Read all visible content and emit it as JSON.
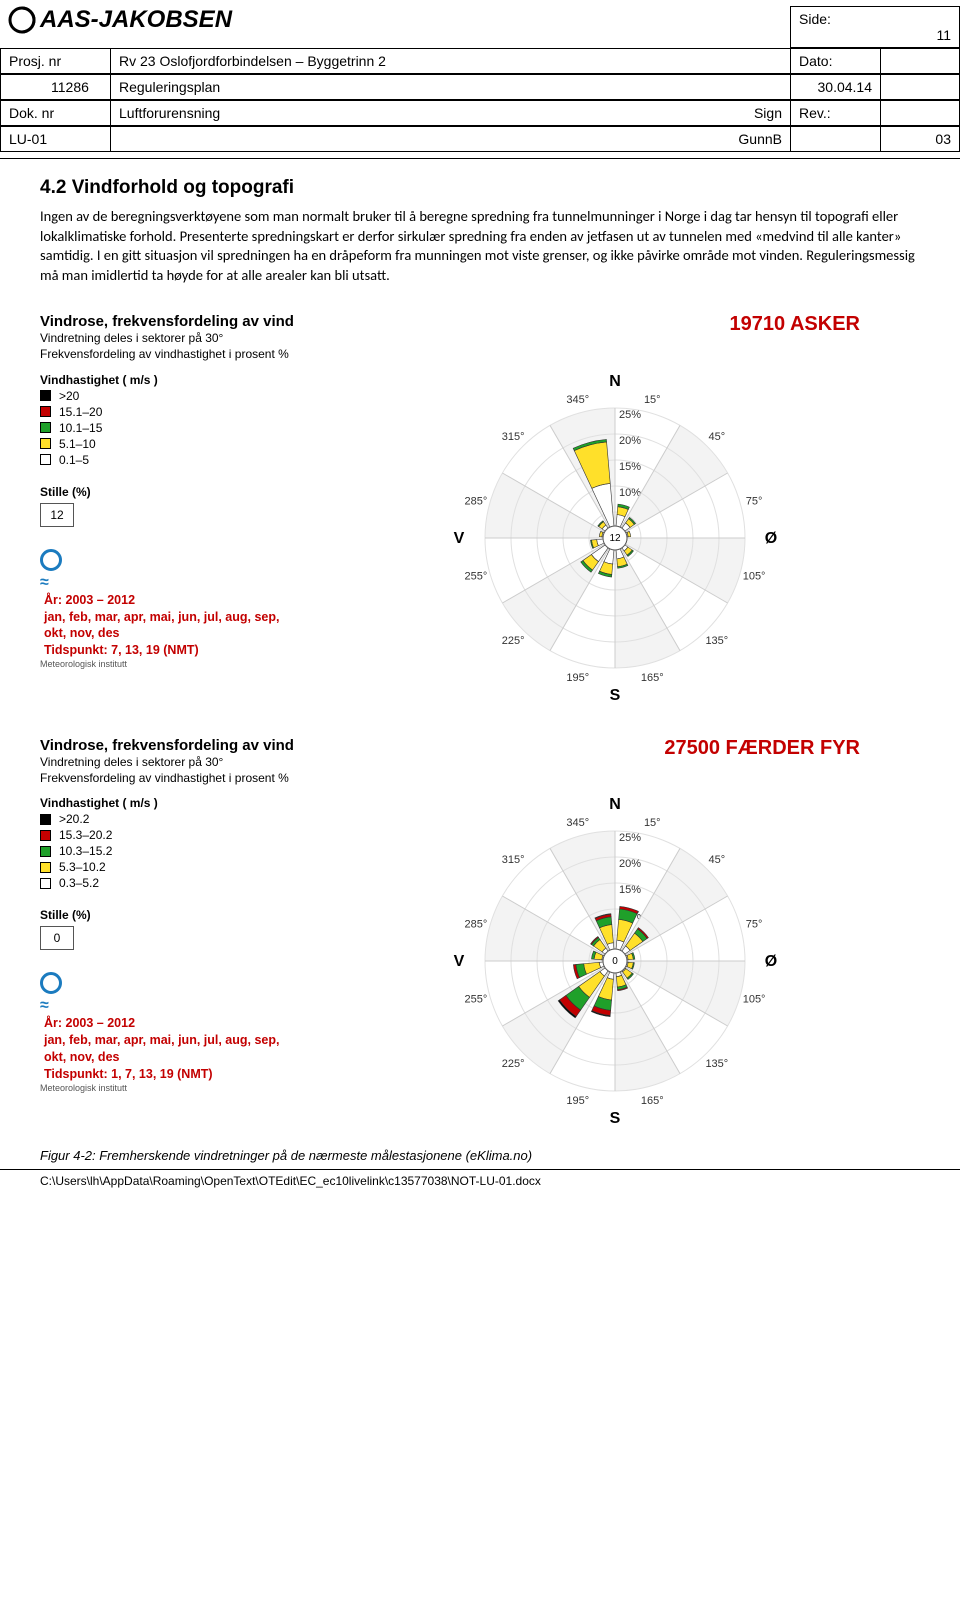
{
  "header": {
    "logo_text": "AAS-JAKOBSEN",
    "side_label": "Side:",
    "side_value": "11",
    "row1": {
      "a": "Prosj. nr",
      "b": "Rv 23 Oslofjordforbindelsen – Byggetrinn 2",
      "c": "Dato:"
    },
    "row2": {
      "a": "11286",
      "b": "Reguleringsplan",
      "c": "30.04.14"
    },
    "row3": {
      "a": "Dok. nr",
      "b": "Luftforurensning",
      "sign_lbl": "Sign",
      "rev_lbl": "Rev.:"
    },
    "row4": {
      "a": "LU-01",
      "sign": "GunnB",
      "rev": "03"
    }
  },
  "section": {
    "heading": "4.2  Vindforhold og topografi",
    "paragraph": "Ingen av de beregningsverktøyene som man normalt bruker til å beregne spredning fra tunnelmunninger i Norge i dag tar hensyn til topografi eller lokalklimatiske forhold. Presenterte spredningskart er derfor sirkulær spredning fra enden av jetfasen ut av tunnelen med «medvind til alle kanter» samtidig. I en gitt situasjon vil spredningen ha en dråpeform fra munningen mot viste grenser, og ikke påvirke område mot vinden. Reguleringsmessig må man imidlertid ta høyde for at alle arealer kan bli utsatt."
  },
  "rose_common": {
    "title": "Vindrose, frekvensfordeling av vind",
    "sub1": "Vindretning deles i sektorer på 30°",
    "sub2": "Frekvensfordeling av vindhastighet i prosent %",
    "leg_title": "Vindhastighet ( m/s )",
    "stille_title": "Stille (%)",
    "met_name": "Meteorologisk institutt",
    "period_years": "År: 2003 – 2012",
    "period_months": "jan, feb, mar, apr, mai, jun, jul, aug, sep, okt, nov, des",
    "deg_labels": [
      "15°",
      "45°",
      "75°",
      "105°",
      "135°",
      "165°",
      "195°",
      "225°",
      "255°",
      "285°",
      "315°",
      "345°"
    ],
    "ring_labels": [
      "25%",
      "20%",
      "15%",
      "10%"
    ],
    "dir_N": "N",
    "dir_S": "S",
    "dir_E": "Ø",
    "dir_W": "V",
    "colors": {
      "ring": "#e0e0e0",
      "spoke": "#cccccc",
      "bar_low": "#ffffff",
      "bar_mid": "#ffe02a",
      "bar_high": "#1fa02a",
      "bar_top": "#c30000",
      "bar_max": "#000000",
      "stroke": "#333333"
    }
  },
  "rose1": {
    "station": "19710 ASKER",
    "legend": [
      ">20",
      "15.1–20",
      "10.1–15",
      "5.1–10",
      "0.1–5"
    ],
    "stille": "12",
    "center_value": "12",
    "period_time": "Tidspunkt: 7, 13, 19 (NMT)",
    "sectors": [
      {
        "dir": 15,
        "segs": [
          3,
          1.5,
          0.5,
          0,
          0
        ]
      },
      {
        "dir": 45,
        "segs": [
          2,
          1,
          0.3,
          0,
          0
        ]
      },
      {
        "dir": 75,
        "segs": [
          1,
          0.5,
          0,
          0,
          0
        ]
      },
      {
        "dir": 105,
        "segs": [
          0.5,
          0.3,
          0,
          0,
          0
        ]
      },
      {
        "dir": 135,
        "segs": [
          1.5,
          1,
          0.3,
          0,
          0
        ]
      },
      {
        "dir": 165,
        "segs": [
          2.5,
          1.5,
          0.3,
          0,
          0
        ]
      },
      {
        "dir": 195,
        "segs": [
          3.5,
          2,
          0.5,
          0,
          0
        ]
      },
      {
        "dir": 225,
        "segs": [
          4,
          2,
          0.5,
          0,
          0
        ]
      },
      {
        "dir": 255,
        "segs": [
          2,
          1,
          0.2,
          0,
          0
        ]
      },
      {
        "dir": 285,
        "segs": [
          1,
          0.5,
          0,
          0,
          0
        ]
      },
      {
        "dir": 315,
        "segs": [
          1.5,
          0.8,
          0.2,
          0,
          0
        ]
      },
      {
        "dir": 345,
        "segs": [
          9,
          8,
          0.5,
          0,
          0
        ]
      }
    ]
  },
  "rose2": {
    "station": "27500 FÆRDER FYR",
    "legend": [
      ">20.2",
      "15.3–20.2",
      "10.3–15.2",
      "5.3–10.2",
      "0.3–5.2"
    ],
    "stille": "0",
    "center_value": "0",
    "period_time": "Tidspunkt: 1, 7, 13, 19 (NMT)",
    "sectors": [
      {
        "dir": 15,
        "segs": [
          2.5,
          4,
          2,
          0.5,
          0
        ]
      },
      {
        "dir": 45,
        "segs": [
          2,
          3,
          1,
          0.3,
          0
        ]
      },
      {
        "dir": 75,
        "segs": [
          1,
          1,
          0.3,
          0,
          0
        ]
      },
      {
        "dir": 105,
        "segs": [
          1,
          1,
          0.2,
          0,
          0
        ]
      },
      {
        "dir": 135,
        "segs": [
          1,
          1.5,
          0.3,
          0,
          0
        ]
      },
      {
        "dir": 165,
        "segs": [
          1.5,
          2,
          0.5,
          0.2,
          0
        ]
      },
      {
        "dir": 195,
        "segs": [
          2,
          4,
          2,
          1,
          0.2
        ]
      },
      {
        "dir": 225,
        "segs": [
          2,
          5,
          3,
          1.5,
          0.3
        ]
      },
      {
        "dir": 255,
        "segs": [
          1.5,
          3,
          1.5,
          0.5,
          0
        ]
      },
      {
        "dir": 285,
        "segs": [
          1,
          1.5,
          0.5,
          0,
          0
        ]
      },
      {
        "dir": 315,
        "segs": [
          1.5,
          2,
          0.5,
          0.2,
          0
        ]
      },
      {
        "dir": 345,
        "segs": [
          2,
          3.5,
          1.5,
          0.5,
          0.1
        ]
      }
    ]
  },
  "caption": "Figur 4-2: Fremherskende vindretninger på de nærmeste målestasjonene (eKlima.no)",
  "footer": "C:\\Users\\lh\\AppData\\Roaming\\OpenText\\OTEdit\\EC_ec10livelink\\c13577038\\NOT-LU-01.docx"
}
